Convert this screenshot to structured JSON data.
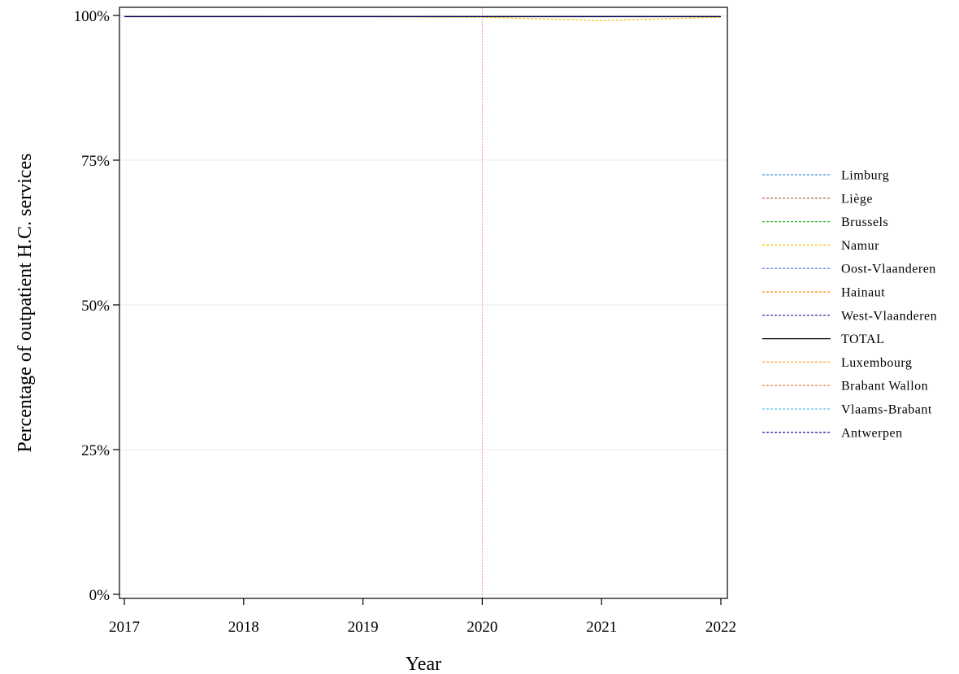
{
  "chart_data": {
    "type": "line",
    "title": "",
    "xlabel": "Year",
    "ylabel": "Percentage of outpatient H.C. services",
    "x": [
      2017,
      2018,
      2019,
      2020,
      2021,
      2022
    ],
    "x_tick_labels": [
      "2017",
      "2018",
      "2019",
      "2020",
      "2021",
      "2022"
    ],
    "y_ticks": [
      0,
      0.25,
      0.5,
      0.75,
      1.0
    ],
    "y_tick_labels": [
      "0%",
      "25%",
      "50%",
      "75%",
      "100%"
    ],
    "xlim": [
      2017,
      2022
    ],
    "ylim": [
      0,
      1
    ],
    "grid": "horizontal",
    "legend_position": "right",
    "reference_line": {
      "axis": "x",
      "value": 2020,
      "color": "#e8a0a8"
    },
    "series": [
      {
        "name": "Limburg",
        "color": "#4a90e2",
        "dash": true,
        "values": [
          0.998,
          0.998,
          0.998,
          0.998,
          0.998,
          0.998
        ]
      },
      {
        "name": "Liège",
        "color": "#a0522d",
        "dash": true,
        "values": [
          0.998,
          0.998,
          0.998,
          0.998,
          0.998,
          0.998
        ]
      },
      {
        "name": "Brussels",
        "color": "#2eb82e",
        "dash": true,
        "values": [
          0.998,
          0.998,
          0.998,
          0.998,
          0.998,
          0.998
        ]
      },
      {
        "name": "Namur",
        "color": "#f2c400",
        "dash": true,
        "values": [
          0.998,
          0.998,
          0.998,
          0.997,
          0.991,
          0.997
        ]
      },
      {
        "name": "Oost-Vlaanderen",
        "color": "#4169e1",
        "dash": true,
        "values": [
          0.998,
          0.998,
          0.998,
          0.998,
          0.998,
          0.998
        ]
      },
      {
        "name": "Hainaut",
        "color": "#ff8c00",
        "dash": true,
        "values": [
          0.998,
          0.998,
          0.998,
          0.998,
          0.998,
          0.998
        ]
      },
      {
        "name": "West-Vlaanderen",
        "color": "#1a1a8c",
        "dash": true,
        "values": [
          0.998,
          0.998,
          0.998,
          0.998,
          0.998,
          0.998
        ]
      },
      {
        "name": "TOTAL",
        "color": "#000000",
        "dash": false,
        "values": [
          0.998,
          0.998,
          0.998,
          0.998,
          0.998,
          0.998
        ]
      },
      {
        "name": "Luxembourg",
        "color": "#f5a623",
        "dash": true,
        "values": [
          0.998,
          0.998,
          0.998,
          0.998,
          0.998,
          0.998
        ]
      },
      {
        "name": "Brabant Wallon",
        "color": "#e8703a",
        "dash": true,
        "values": [
          0.998,
          0.998,
          0.998,
          0.998,
          0.998,
          0.998
        ]
      },
      {
        "name": "Vlaams-Brabant",
        "color": "#5bc0eb",
        "dash": true,
        "values": [
          0.998,
          0.998,
          0.998,
          0.998,
          0.998,
          0.998
        ]
      },
      {
        "name": "Antwerpen",
        "color": "#00008b",
        "dash": true,
        "values": [
          0.998,
          0.998,
          0.998,
          0.998,
          0.998,
          0.998
        ]
      }
    ]
  }
}
